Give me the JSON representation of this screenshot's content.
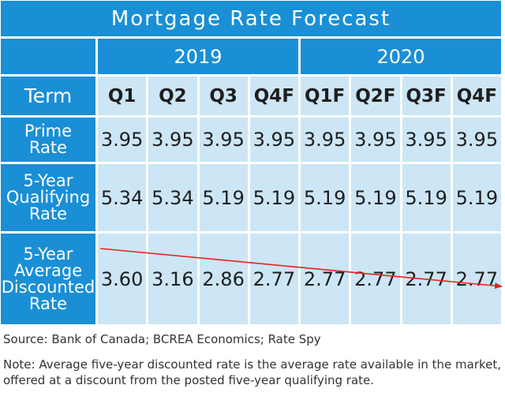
{
  "chart_data": {
    "type": "table",
    "title": "Mortgage Rate Forecast",
    "corner_label": "Term",
    "year_groups": [
      {
        "label": "2019",
        "span": 4
      },
      {
        "label": "2020",
        "span": 4
      }
    ],
    "columns": [
      "Q1",
      "Q2",
      "Q3",
      "Q4F",
      "Q1F",
      "Q2F",
      "Q3F",
      "Q4F"
    ],
    "rows": [
      {
        "label": [
          "Prime",
          "Rate"
        ],
        "values": [
          "3.95",
          "3.95",
          "3.95",
          "3.95",
          "3.95",
          "3.95",
          "3.95",
          "3.95"
        ]
      },
      {
        "label": [
          "5-Year",
          "Qualifying",
          "Rate"
        ],
        "values": [
          "5.34",
          "5.34",
          "5.19",
          "5.19",
          "5.19",
          "5.19",
          "5.19",
          "5.19"
        ]
      },
      {
        "label": [
          "5-Year",
          "Average",
          "Discounted",
          "Rate"
        ],
        "values": [
          "3.60",
          "3.16",
          "2.86",
          "2.77",
          "2.77",
          "2.77",
          "2.77",
          "2.77"
        ]
      }
    ],
    "trend_line": {
      "row": 2,
      "color": "#e8231a",
      "direction": "downward"
    }
  },
  "source": "Source: Bank of Canada; BCREA Economics; Rate Spy",
  "note": "Note: Average five-year discounted rate is the average rate available in the market, offered at a discount from the posted five-year qualifying rate.",
  "colors": {
    "header_blue": "#1a8fd6",
    "cell_pale": "#cce6f5",
    "trend_red": "#e8231a"
  }
}
